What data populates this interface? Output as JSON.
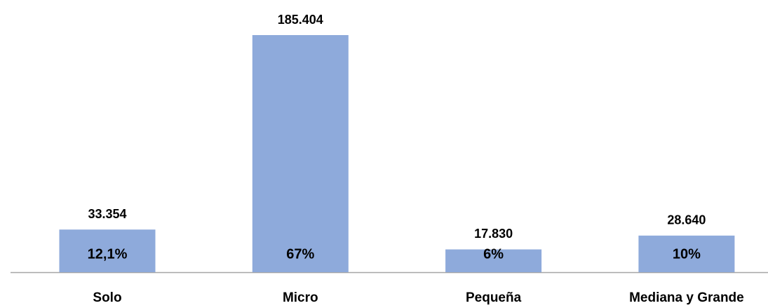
{
  "chart_data": {
    "type": "bar",
    "categories": [
      "Solo",
      "Micro",
      "Pequeña",
      "Mediana y Grande"
    ],
    "values": [
      33354,
      185404,
      17830,
      28640
    ],
    "value_labels": [
      "33.354",
      "185.404",
      "17.830",
      "28.640"
    ],
    "percent_values": [
      12.1,
      67,
      6,
      10
    ],
    "percent_labels": [
      "12,1%",
      "67%",
      "6%",
      "10%"
    ],
    "color": "#8eaadb",
    "ylim": [
      0,
      200000
    ]
  }
}
